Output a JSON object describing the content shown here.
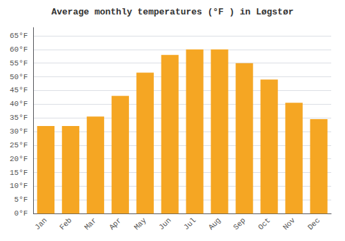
{
  "chart_data": {
    "type": "bar",
    "title": "Average monthly temperatures (°F ) in Løgstør",
    "categories": [
      "Jan",
      "Feb",
      "Mar",
      "Apr",
      "May",
      "Jun",
      "Jul",
      "Aug",
      "Sep",
      "Oct",
      "Nov",
      "Dec"
    ],
    "values": [
      32,
      32,
      35.5,
      43,
      51.5,
      58,
      60,
      60,
      55,
      49,
      40.5,
      34.5
    ],
    "color": "#F5A623",
    "ylim": [
      0,
      68
    ],
    "yticks": [
      {
        "value": 0,
        "label": "0°F"
      },
      {
        "value": 5,
        "label": "5°F"
      },
      {
        "value": 10,
        "label": "10°F"
      },
      {
        "value": 15,
        "label": "15°F"
      },
      {
        "value": 20,
        "label": "20°F"
      },
      {
        "value": 25,
        "label": "25°F"
      },
      {
        "value": 30,
        "label": "30°F"
      },
      {
        "value": 35,
        "label": "35°F"
      },
      {
        "value": 40,
        "label": "40°F"
      },
      {
        "value": 45,
        "label": "45°F"
      },
      {
        "value": 50,
        "label": "50°F"
      },
      {
        "value": 55,
        "label": "55°F"
      },
      {
        "value": 60,
        "label": "60°F"
      },
      {
        "value": 65,
        "label": "65°F"
      }
    ],
    "grid": true
  }
}
